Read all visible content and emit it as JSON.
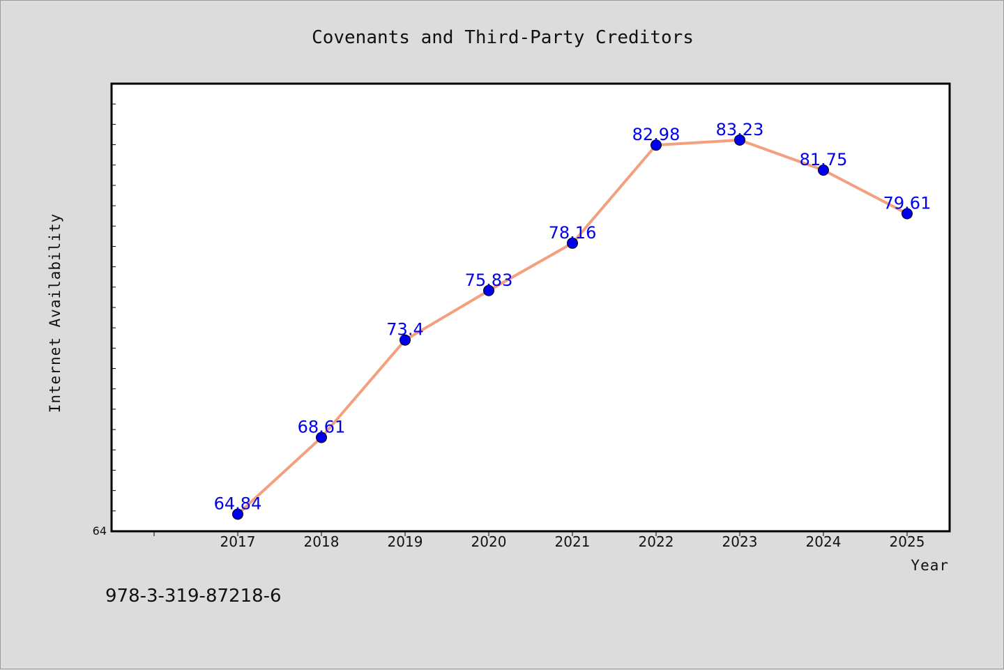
{
  "chart_data": {
    "type": "line",
    "title": "Covenants and Third-Party Creditors",
    "xlabel": "Year",
    "ylabel": "Internet Availability",
    "x": [
      "2017",
      "2018",
      "2019",
      "2020",
      "2021",
      "2022",
      "2023",
      "2024",
      "2025"
    ],
    "series": [
      {
        "values": [
          64.84,
          68.61,
          73.4,
          75.83,
          78.16,
          82.98,
          83.23,
          81.75,
          79.61
        ]
      }
    ],
    "data_labels": [
      "64.84",
      "68.61",
      "73.4",
      "75.83",
      "78.16",
      "82.98",
      "83.23",
      "81.75",
      "79.61"
    ],
    "ylim": [
      64,
      86
    ],
    "y_tick_labels": [
      "64"
    ],
    "grid": false,
    "legend": "none"
  },
  "footnote": "978-3-319-87218-6",
  "colors": {
    "background": "#dcdcdc",
    "plot_background": "#ffffff",
    "line": "#f4a07e",
    "marker": "#0000ee",
    "data_label": "#0000ee"
  }
}
